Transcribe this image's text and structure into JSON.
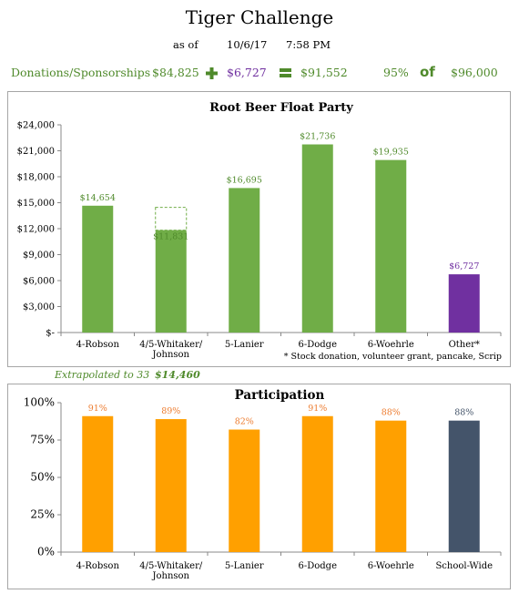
{
  "title": "Tiger Challenge",
  "asof": {
    "label": "as of",
    "date": "10/6/17",
    "time": "7:58 PM"
  },
  "summary": {
    "label": "Donations/Sponsorships",
    "donations": "$84,825",
    "other": "$6,727",
    "total": "$91,552",
    "percent": "95%",
    "of_word": "of",
    "goal": "$96,000",
    "plus_icon": "plus-icon",
    "equals_icon": "equals-icon"
  },
  "extrapolated": {
    "label": "Extrapolated to 33",
    "value": "$14,460"
  },
  "colors": {
    "green": "#70ad47",
    "purple": "#7030a0",
    "orange": "#ffa000",
    "slate": "#44546a",
    "text_green": "#4f8a2b",
    "text_orange": "#ed7d31"
  },
  "chart_data": [
    {
      "type": "bar",
      "title": "Root Beer Float Party",
      "categories": [
        "4-Robson",
        "4/5-Whitaker/ Johnson",
        "5-Lanier",
        "6-Dodge",
        "6-Woehrle",
        "Other*"
      ],
      "values": [
        14654,
        11831,
        16695,
        21736,
        19935,
        6727
      ],
      "data_labels": [
        "$14,654",
        "$11,831",
        "$16,695",
        "$21,736",
        "$19,935",
        "$6,727"
      ],
      "bar_colors": [
        "#70ad47",
        "#70ad47",
        "#70ad47",
        "#70ad47",
        "#70ad47",
        "#7030a0"
      ],
      "extrapolated_outline": {
        "category_index": 1,
        "value": 14460
      },
      "ylim": [
        0,
        24000
      ],
      "y_ticks": [
        0,
        3000,
        6000,
        9000,
        12000,
        15000,
        18000,
        21000,
        24000
      ],
      "y_tick_labels": [
        "$-",
        "$3,000",
        "$6,000",
        "$9,000",
        "$12,000",
        "$15,000",
        "$18,000",
        "$21,000",
        "$24,000"
      ],
      "footnote": "* Stock donation, volunteer grant, pancake, Scrip",
      "grid": false
    },
    {
      "type": "bar",
      "title": "Participation",
      "categories": [
        "4-Robson",
        "4/5-Whitaker/ Johnson",
        "5-Lanier",
        "6-Dodge",
        "6-Woehrle",
        "School-Wide"
      ],
      "values": [
        91,
        89,
        82,
        91,
        88,
        88
      ],
      "data_labels": [
        "91%",
        "89%",
        "82%",
        "91%",
        "88%",
        "88%"
      ],
      "bar_colors": [
        "#ffa000",
        "#ffa000",
        "#ffa000",
        "#ffa000",
        "#ffa000",
        "#44546a"
      ],
      "ylim": [
        0,
        100
      ],
      "y_ticks": [
        0,
        25,
        50,
        75,
        100
      ],
      "y_tick_labels": [
        "0%",
        "25%",
        "50%",
        "75%",
        "100%"
      ],
      "grid": false
    }
  ]
}
